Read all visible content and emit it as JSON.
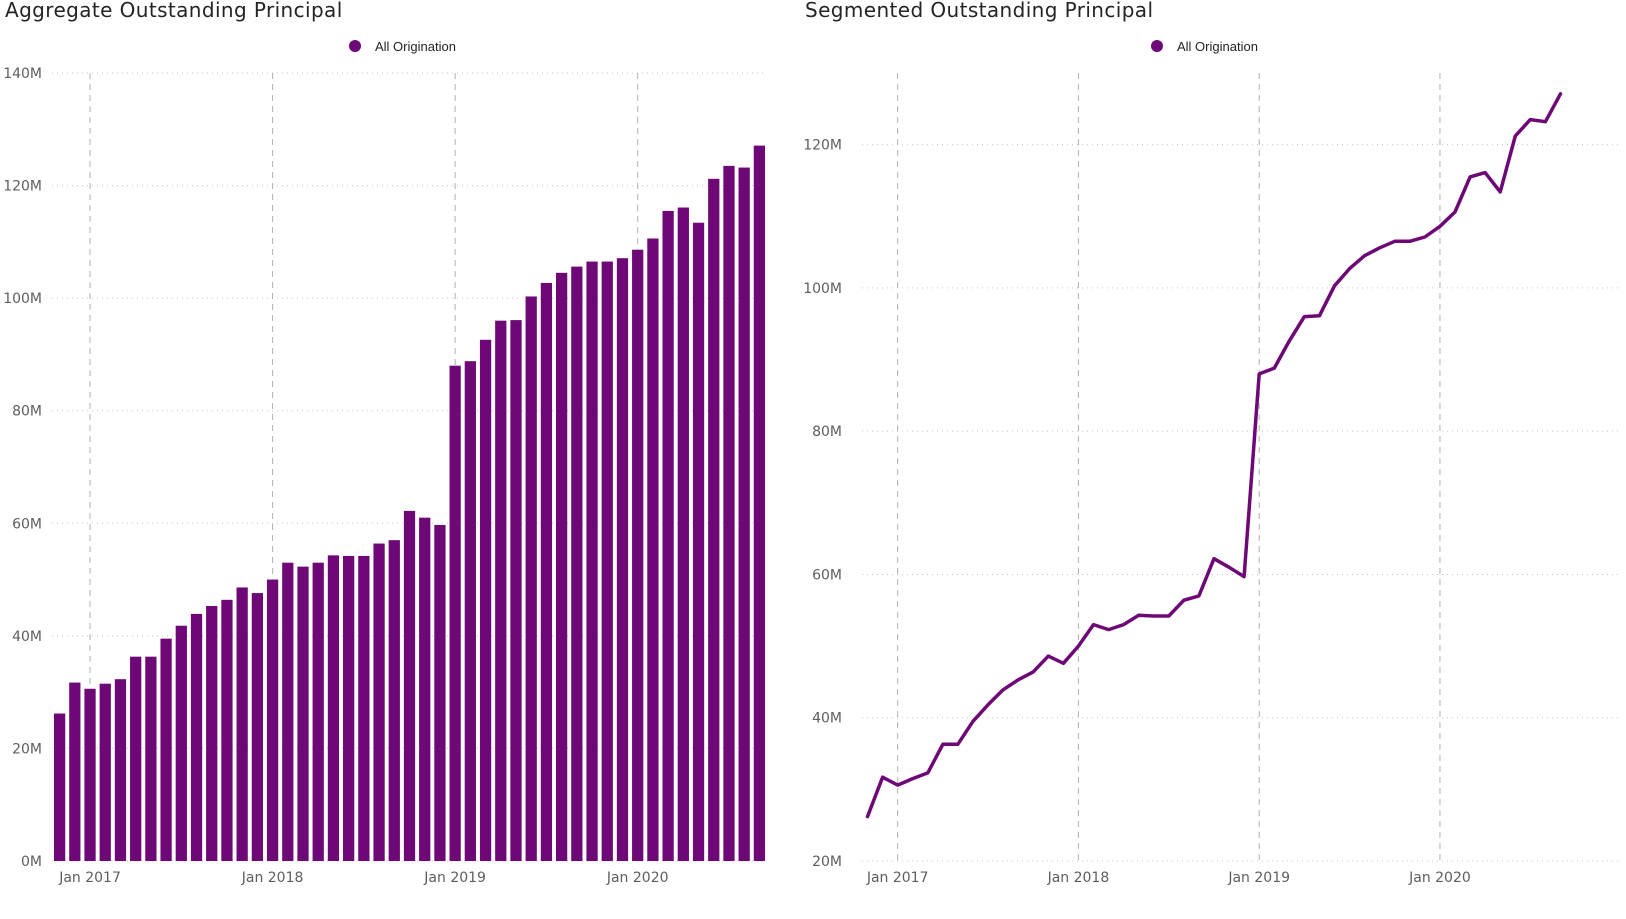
{
  "accent_color": "#6e0877",
  "charts": [
    {
      "title": "Aggregate Outstanding Principal",
      "legend": "All Origination"
    },
    {
      "title": "Segmented Outstanding Principal",
      "legend": "All Origination"
    }
  ],
  "chart_data": [
    {
      "type": "bar",
      "title": "Aggregate Outstanding Principal",
      "legend": [
        "All Origination"
      ],
      "xlabel": "",
      "ylabel": "",
      "ylim": [
        0,
        140
      ],
      "y_unit": "M",
      "y_ticks": [
        "0M",
        "20M",
        "40M",
        "60M",
        "80M",
        "100M",
        "120M",
        "140M"
      ],
      "y_tick_values": [
        0,
        20,
        40,
        60,
        80,
        100,
        120,
        140
      ],
      "x_ticks": [
        "Jan 2017",
        "Jan 2018",
        "Jan 2019",
        "Jan 2020"
      ],
      "x_tick_index": [
        2,
        14,
        26,
        38
      ],
      "categories": [
        "Nov 2016",
        "Dec 2016",
        "Jan 2017",
        "Feb 2017",
        "Mar 2017",
        "Apr 2017",
        "May 2017",
        "Jun 2017",
        "Jul 2017",
        "Aug 2017",
        "Sep 2017",
        "Oct 2017",
        "Nov 2017",
        "Dec 2017",
        "Jan 2018",
        "Feb 2018",
        "Mar 2018",
        "Apr 2018",
        "May 2018",
        "Jun 2018",
        "Jul 2018",
        "Aug 2018",
        "Sep 2018",
        "Oct 2018",
        "Nov 2018",
        "Dec 2018",
        "Jan 2019",
        "Feb 2019",
        "Mar 2019",
        "Apr 2019",
        "May 2019",
        "Jun 2019",
        "Jul 2019",
        "Aug 2019",
        "Sep 2019",
        "Oct 2019",
        "Nov 2019",
        "Dec 2019",
        "Jan 2020",
        "Feb 2020",
        "Mar 2020",
        "Apr 2020",
        "May 2020",
        "Jun 2020",
        "Jul 2020",
        "Aug 2020",
        "Sep 2020"
      ],
      "values": [
        26.2,
        31.7,
        30.6,
        31.5,
        32.3,
        36.3,
        36.3,
        39.5,
        41.8,
        43.9,
        45.3,
        46.4,
        48.6,
        47.6,
        50.0,
        53.0,
        52.3,
        53.0,
        54.3,
        54.2,
        54.2,
        56.4,
        57.0,
        62.2,
        61.0,
        59.7,
        88.0,
        88.8,
        92.6,
        96.0,
        96.1,
        100.3,
        102.7,
        104.5,
        105.6,
        106.5,
        106.5,
        107.1,
        108.6,
        110.6,
        115.5,
        116.1,
        113.4,
        121.2,
        123.5,
        123.2,
        127.1
      ],
      "series": [
        {
          "name": "All Origination",
          "color": "#6e0877"
        }
      ]
    },
    {
      "type": "line",
      "title": "Segmented Outstanding Principal",
      "legend": [
        "All Origination"
      ],
      "xlabel": "",
      "ylabel": "",
      "ylim": [
        20,
        130
      ],
      "y_unit": "M",
      "y_ticks": [
        "20M",
        "40M",
        "60M",
        "80M",
        "100M",
        "120M"
      ],
      "y_tick_values": [
        20,
        40,
        60,
        80,
        100,
        120
      ],
      "x_ticks": [
        "Jan 2017",
        "Jan 2018",
        "Jan 2019",
        "Jan 2020"
      ],
      "x_tick_index": [
        2,
        14,
        26,
        38
      ],
      "categories": [
        "Nov 2016",
        "Dec 2016",
        "Jan 2017",
        "Feb 2017",
        "Mar 2017",
        "Apr 2017",
        "May 2017",
        "Jun 2017",
        "Jul 2017",
        "Aug 2017",
        "Sep 2017",
        "Oct 2017",
        "Nov 2017",
        "Dec 2017",
        "Jan 2018",
        "Feb 2018",
        "Mar 2018",
        "Apr 2018",
        "May 2018",
        "Jun 2018",
        "Jul 2018",
        "Aug 2018",
        "Sep 2018",
        "Oct 2018",
        "Nov 2018",
        "Dec 2018",
        "Jan 2019",
        "Feb 2019",
        "Mar 2019",
        "Apr 2019",
        "May 2019",
        "Jun 2019",
        "Jul 2019",
        "Aug 2019",
        "Sep 2019",
        "Oct 2019",
        "Nov 2019",
        "Dec 2019",
        "Jan 2020",
        "Feb 2020",
        "Mar 2020",
        "Apr 2020",
        "May 2020",
        "Jun 2020",
        "Jul 2020",
        "Aug 2020",
        "Sep 2020"
      ],
      "values": [
        26.2,
        31.7,
        30.6,
        31.5,
        32.3,
        36.3,
        36.3,
        39.5,
        41.8,
        43.9,
        45.3,
        46.4,
        48.6,
        47.6,
        50.0,
        53.0,
        52.3,
        53.0,
        54.3,
        54.2,
        54.2,
        56.4,
        57.0,
        62.2,
        61.0,
        59.7,
        88.0,
        88.8,
        92.6,
        96.0,
        96.1,
        100.3,
        102.7,
        104.5,
        105.6,
        106.5,
        106.5,
        107.1,
        108.6,
        110.6,
        115.5,
        116.1,
        113.4,
        121.2,
        123.5,
        123.2,
        127.1
      ],
      "series": [
        {
          "name": "All Origination",
          "color": "#6e0877"
        }
      ]
    }
  ]
}
